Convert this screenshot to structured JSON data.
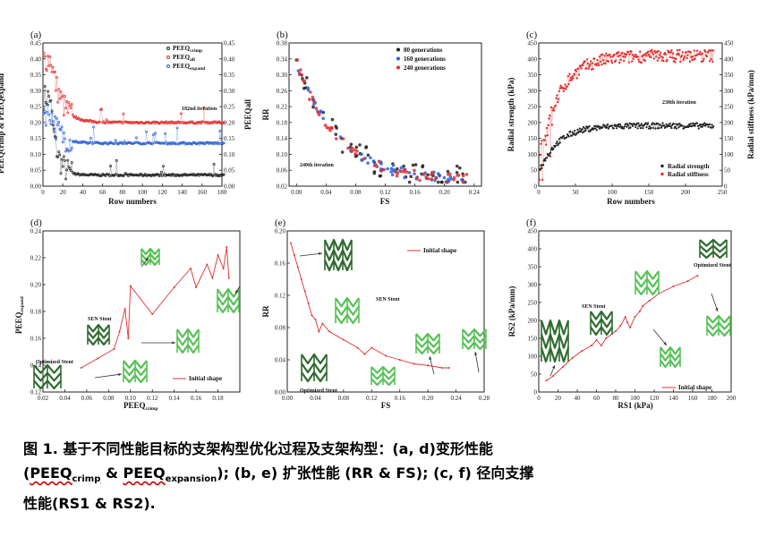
{
  "colors": {
    "black": "#222222",
    "red": "#e23030",
    "blue": "#2a62d8",
    "stent_dark": "#2e6b2e",
    "stent_light": "#58c158"
  },
  "caption": {
    "line1": "图 1. 基于不同性能目标的支架构型优化过程及支架构型：(a, d)变形性能",
    "line2_prefix": "(",
    "peeq_crimp": "PEEQ",
    "peeq_crimp_sub": "crimp",
    "amp": " & ",
    "peeq_exp": "PEEQ",
    "peeq_exp_sub": "expansion",
    "line2_rest": "); (b, e) 扩张性能 (RR & FS); (c, f) 径向支撑",
    "line3": "性能(RS1 & RS2)."
  },
  "chart_data": [
    {
      "id": "a",
      "type": "scatter",
      "panel_label": "(a)",
      "xlabel": "Row numbers",
      "ylabel_left": "PEEQcrimp & PEEQexpand",
      "ylabel_right": "PEEQall",
      "xlim": [
        0,
        180
      ],
      "ylim": [
        0,
        0.45
      ],
      "xticks": [
        0,
        20,
        40,
        60,
        80,
        100,
        120,
        140,
        160,
        180
      ],
      "yticks": [
        0.0,
        0.05,
        0.1,
        0.15,
        0.2,
        0.25,
        0.3,
        0.35,
        0.4,
        0.45
      ],
      "yticks_right": [
        0.0,
        0.05,
        0.1,
        0.15,
        0.2,
        0.25,
        0.3,
        0.35,
        0.4,
        0.45
      ],
      "annotation": "182nd iteration",
      "series": [
        {
          "name": "PEEQcrimp",
          "color": "#222222",
          "start": 0.28,
          "end": 0.035,
          "decay": 6,
          "knee": 18
        },
        {
          "name": "PEEQall",
          "color": "#e23030",
          "start": 0.4,
          "end": 0.2,
          "decay": 10,
          "knee": 20
        },
        {
          "name": "PEEQexpand",
          "color": "#2a62d8",
          "start": 0.23,
          "end": 0.135,
          "decay": 8,
          "knee": 20
        }
      ],
      "legend": [
        {
          "text": "PEEQ",
          "sub": "crimp",
          "color": "#222222"
        },
        {
          "text": "PEEQ",
          "sub": "all",
          "color": "#e23030"
        },
        {
          "text": "PEEQ",
          "sub": "expand",
          "color": "#2a62d8"
        }
      ]
    },
    {
      "id": "b",
      "type": "scatter",
      "panel_label": "(b)",
      "xlabel": "FS",
      "ylabel": "RR",
      "xlim": [
        -0.01,
        0.25
      ],
      "ylim": [
        0.02,
        0.38
      ],
      "xticks": [
        0.0,
        0.04,
        0.08,
        0.12,
        0.16,
        0.2,
        0.24
      ],
      "yticks": [
        0.02,
        0.06,
        0.1,
        0.14,
        0.18,
        0.22,
        0.26,
        0.3,
        0.34,
        0.38
      ],
      "annotation": "240th iteration",
      "legend": [
        {
          "text": "80 generations",
          "color": "#222222"
        },
        {
          "text": "160 generations",
          "color": "#2a62d8"
        },
        {
          "text": "240 generations",
          "color": "#e23030"
        }
      ]
    },
    {
      "id": "c",
      "type": "scatter",
      "panel_label": "(c)",
      "xlabel": "Row numbers",
      "ylabel_left": "Radial strength (kPa)",
      "ylabel_right": "Radial stiffness (kPa/mm)",
      "xlim": [
        0,
        250
      ],
      "ylim": [
        0,
        450
      ],
      "xticks": [
        0,
        50,
        100,
        150,
        200,
        250
      ],
      "yticks": [
        0,
        50,
        100,
        150,
        200,
        250,
        300,
        350,
        400,
        450
      ],
      "yticks_right": [
        0,
        50,
        100,
        150,
        200,
        250,
        300,
        350,
        400,
        450
      ],
      "annotation": "238th iteration",
      "legend": [
        {
          "text": "Radial strength",
          "color": "#222222"
        },
        {
          "text": "Radial stiffness",
          "color": "#e23030"
        }
      ]
    },
    {
      "id": "d",
      "type": "line",
      "panel_label": "(d)",
      "xlabel": "PEEQcrimp",
      "ylabel": "PEEQexpand",
      "xlim": [
        0.02,
        0.2
      ],
      "ylim": [
        0.12,
        0.24
      ],
      "xticks": [
        0.02,
        0.04,
        0.06,
        0.08,
        0.1,
        0.12,
        0.14,
        0.16,
        0.18
      ],
      "yticks": [
        0.12,
        0.14,
        0.16,
        0.18,
        0.2,
        0.22,
        0.24
      ],
      "legend": [
        {
          "text": "Initial shape",
          "color": "#e23030"
        }
      ],
      "annotations": [
        "SEN Stent",
        "Optimized Stent"
      ],
      "x": [
        0.055,
        0.07,
        0.085,
        0.09,
        0.095,
        0.098,
        0.1,
        0.12,
        0.14,
        0.155,
        0.16,
        0.17,
        0.175,
        0.18,
        0.185,
        0.188,
        0.19
      ],
      "y": [
        0.138,
        0.145,
        0.152,
        0.165,
        0.182,
        0.16,
        0.199,
        0.178,
        0.198,
        0.212,
        0.198,
        0.215,
        0.205,
        0.222,
        0.212,
        0.228,
        0.205
      ]
    },
    {
      "id": "e",
      "type": "line",
      "panel_label": "(e)",
      "xlabel": "FS",
      "ylabel": "RR",
      "xlim": [
        0,
        0.28
      ],
      "ylim": [
        0,
        0.2
      ],
      "xticks": [
        0.0,
        0.04,
        0.08,
        0.12,
        0.16,
        0.2,
        0.24,
        0.28
      ],
      "yticks": [
        0.0,
        0.04,
        0.08,
        0.12,
        0.16,
        0.2
      ],
      "legend": [
        {
          "text": "Initial shape",
          "color": "#e23030"
        }
      ],
      "annotations": [
        "SEN Stent",
        "Optimized Stent"
      ],
      "x": [
        0.005,
        0.01,
        0.015,
        0.02,
        0.025,
        0.03,
        0.035,
        0.04,
        0.045,
        0.05,
        0.06,
        0.08,
        0.1,
        0.11,
        0.12,
        0.14,
        0.16,
        0.18,
        0.2,
        0.22,
        0.23
      ],
      "y": [
        0.185,
        0.17,
        0.155,
        0.14,
        0.125,
        0.11,
        0.095,
        0.09,
        0.075,
        0.085,
        0.075,
        0.065,
        0.055,
        0.047,
        0.055,
        0.045,
        0.04,
        0.035,
        0.033,
        0.03,
        0.03
      ]
    },
    {
      "id": "f",
      "type": "line",
      "panel_label": "(f)",
      "xlabel": "RS1 (kPa)",
      "ylabel": "RS2 (kPa/mm)",
      "xlim": [
        0,
        200
      ],
      "ylim": [
        0,
        450
      ],
      "xticks": [
        0,
        20,
        40,
        60,
        80,
        100,
        120,
        140,
        160,
        180,
        200
      ],
      "yticks": [
        0,
        50,
        100,
        150,
        200,
        250,
        300,
        350,
        400,
        450
      ],
      "legend": [
        {
          "text": "Initial shape",
          "color": "#e23030"
        }
      ],
      "annotations": [
        "SEN Stent",
        "Optimized Stent"
      ],
      "x": [
        8,
        15,
        25,
        35,
        45,
        55,
        60,
        65,
        70,
        80,
        85,
        90,
        92,
        95,
        100,
        105,
        108,
        115,
        125,
        140,
        155,
        165
      ],
      "y": [
        32,
        45,
        70,
        95,
        115,
        130,
        145,
        130,
        150,
        170,
        185,
        210,
        195,
        180,
        210,
        225,
        240,
        255,
        275,
        295,
        310,
        325
      ]
    }
  ]
}
